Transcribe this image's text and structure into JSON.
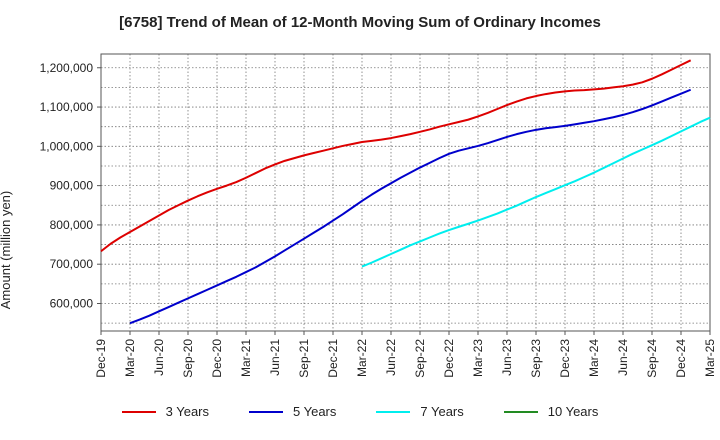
{
  "chart_data": {
    "type": "line",
    "title": "[6758]  Trend of Mean of 12-Month Moving Sum of Ordinary Incomes",
    "ylabel": "Amount (million yen)",
    "xlabel": "",
    "ylim": [
      530000,
      1235000
    ],
    "yticks": [
      600000,
      700000,
      800000,
      900000,
      1000000,
      1100000,
      1200000
    ],
    "ytick_labels": [
      "600,000",
      "700,000",
      "800,000",
      "900,000",
      "1,000,000",
      "1,100,000",
      "1,200,000"
    ],
    "xticks": [
      "Dec-19",
      "Mar-20",
      "Jun-20",
      "Sep-20",
      "Dec-20",
      "Mar-21",
      "Jun-21",
      "Sep-21",
      "Dec-21",
      "Mar-22",
      "Jun-22",
      "Sep-22",
      "Dec-22",
      "Mar-23",
      "Jun-23",
      "Sep-23",
      "Dec-23",
      "Mar-24",
      "Jun-24",
      "Sep-24",
      "Dec-24",
      "Mar-25"
    ],
    "grid": true,
    "legend_position": "bottom",
    "series": [
      {
        "name": "3 Years",
        "color": "#dd0000",
        "start_index": 0,
        "values": [
          733000,
          752000,
          768000,
          782000,
          796000,
          810000,
          824000,
          838000,
          850000,
          862000,
          873000,
          883000,
          892000,
          900000,
          909000,
          920000,
          932000,
          944000,
          954000,
          963000,
          970000,
          977000,
          983000,
          989000,
          995000,
          1001000,
          1006000,
          1011000,
          1014000,
          1017000,
          1021000,
          1026000,
          1031000,
          1037000,
          1043000,
          1050000,
          1056000,
          1062000,
          1068000,
          1076000,
          1085000,
          1095000,
          1105000,
          1114000,
          1122000,
          1128000,
          1133000,
          1137000,
          1140000,
          1142000,
          1143000,
          1145000,
          1147000,
          1150000,
          1153000,
          1157000,
          1163000,
          1172000,
          1183000,
          1195000,
          1207000,
          1219000
        ]
      },
      {
        "name": "5 Years",
        "color": "#0000cc",
        "start_index": 3,
        "values": [
          550000,
          559000,
          569000,
          580000,
          591000,
          602000,
          613000,
          624000,
          635000,
          646000,
          657000,
          668000,
          680000,
          692000,
          706000,
          720000,
          735000,
          750000,
          765000,
          780000,
          795000,
          811000,
          827000,
          844000,
          861000,
          877000,
          892000,
          906000,
          920000,
          933000,
          946000,
          958000,
          970000,
          981000,
          989000,
          995000,
          1001000,
          1008000,
          1016000,
          1024000,
          1031000,
          1037000,
          1042000,
          1046000,
          1049000,
          1052000,
          1056000,
          1060000,
          1064000,
          1069000,
          1074000,
          1080000,
          1087000,
          1095000,
          1104000,
          1114000,
          1124000,
          1134000,
          1144000
        ]
      },
      {
        "name": "7 Years",
        "color": "#00eeee",
        "start_index": 27,
        "values": [
          694000,
          704000,
          715000,
          726000,
          737000,
          748000,
          758000,
          768000,
          778000,
          787000,
          795000,
          803000,
          811000,
          820000,
          829000,
          839000,
          849000,
          860000,
          871000,
          881000,
          891000,
          901000,
          911000,
          922000,
          933000,
          945000,
          957000,
          969000,
          981000,
          992000,
          1003000,
          1014000,
          1026000,
          1038000,
          1050000,
          1062000,
          1073000
        ]
      },
      {
        "name": "10 Years",
        "color": "#228b22",
        "start_index": 0,
        "values": []
      }
    ]
  }
}
